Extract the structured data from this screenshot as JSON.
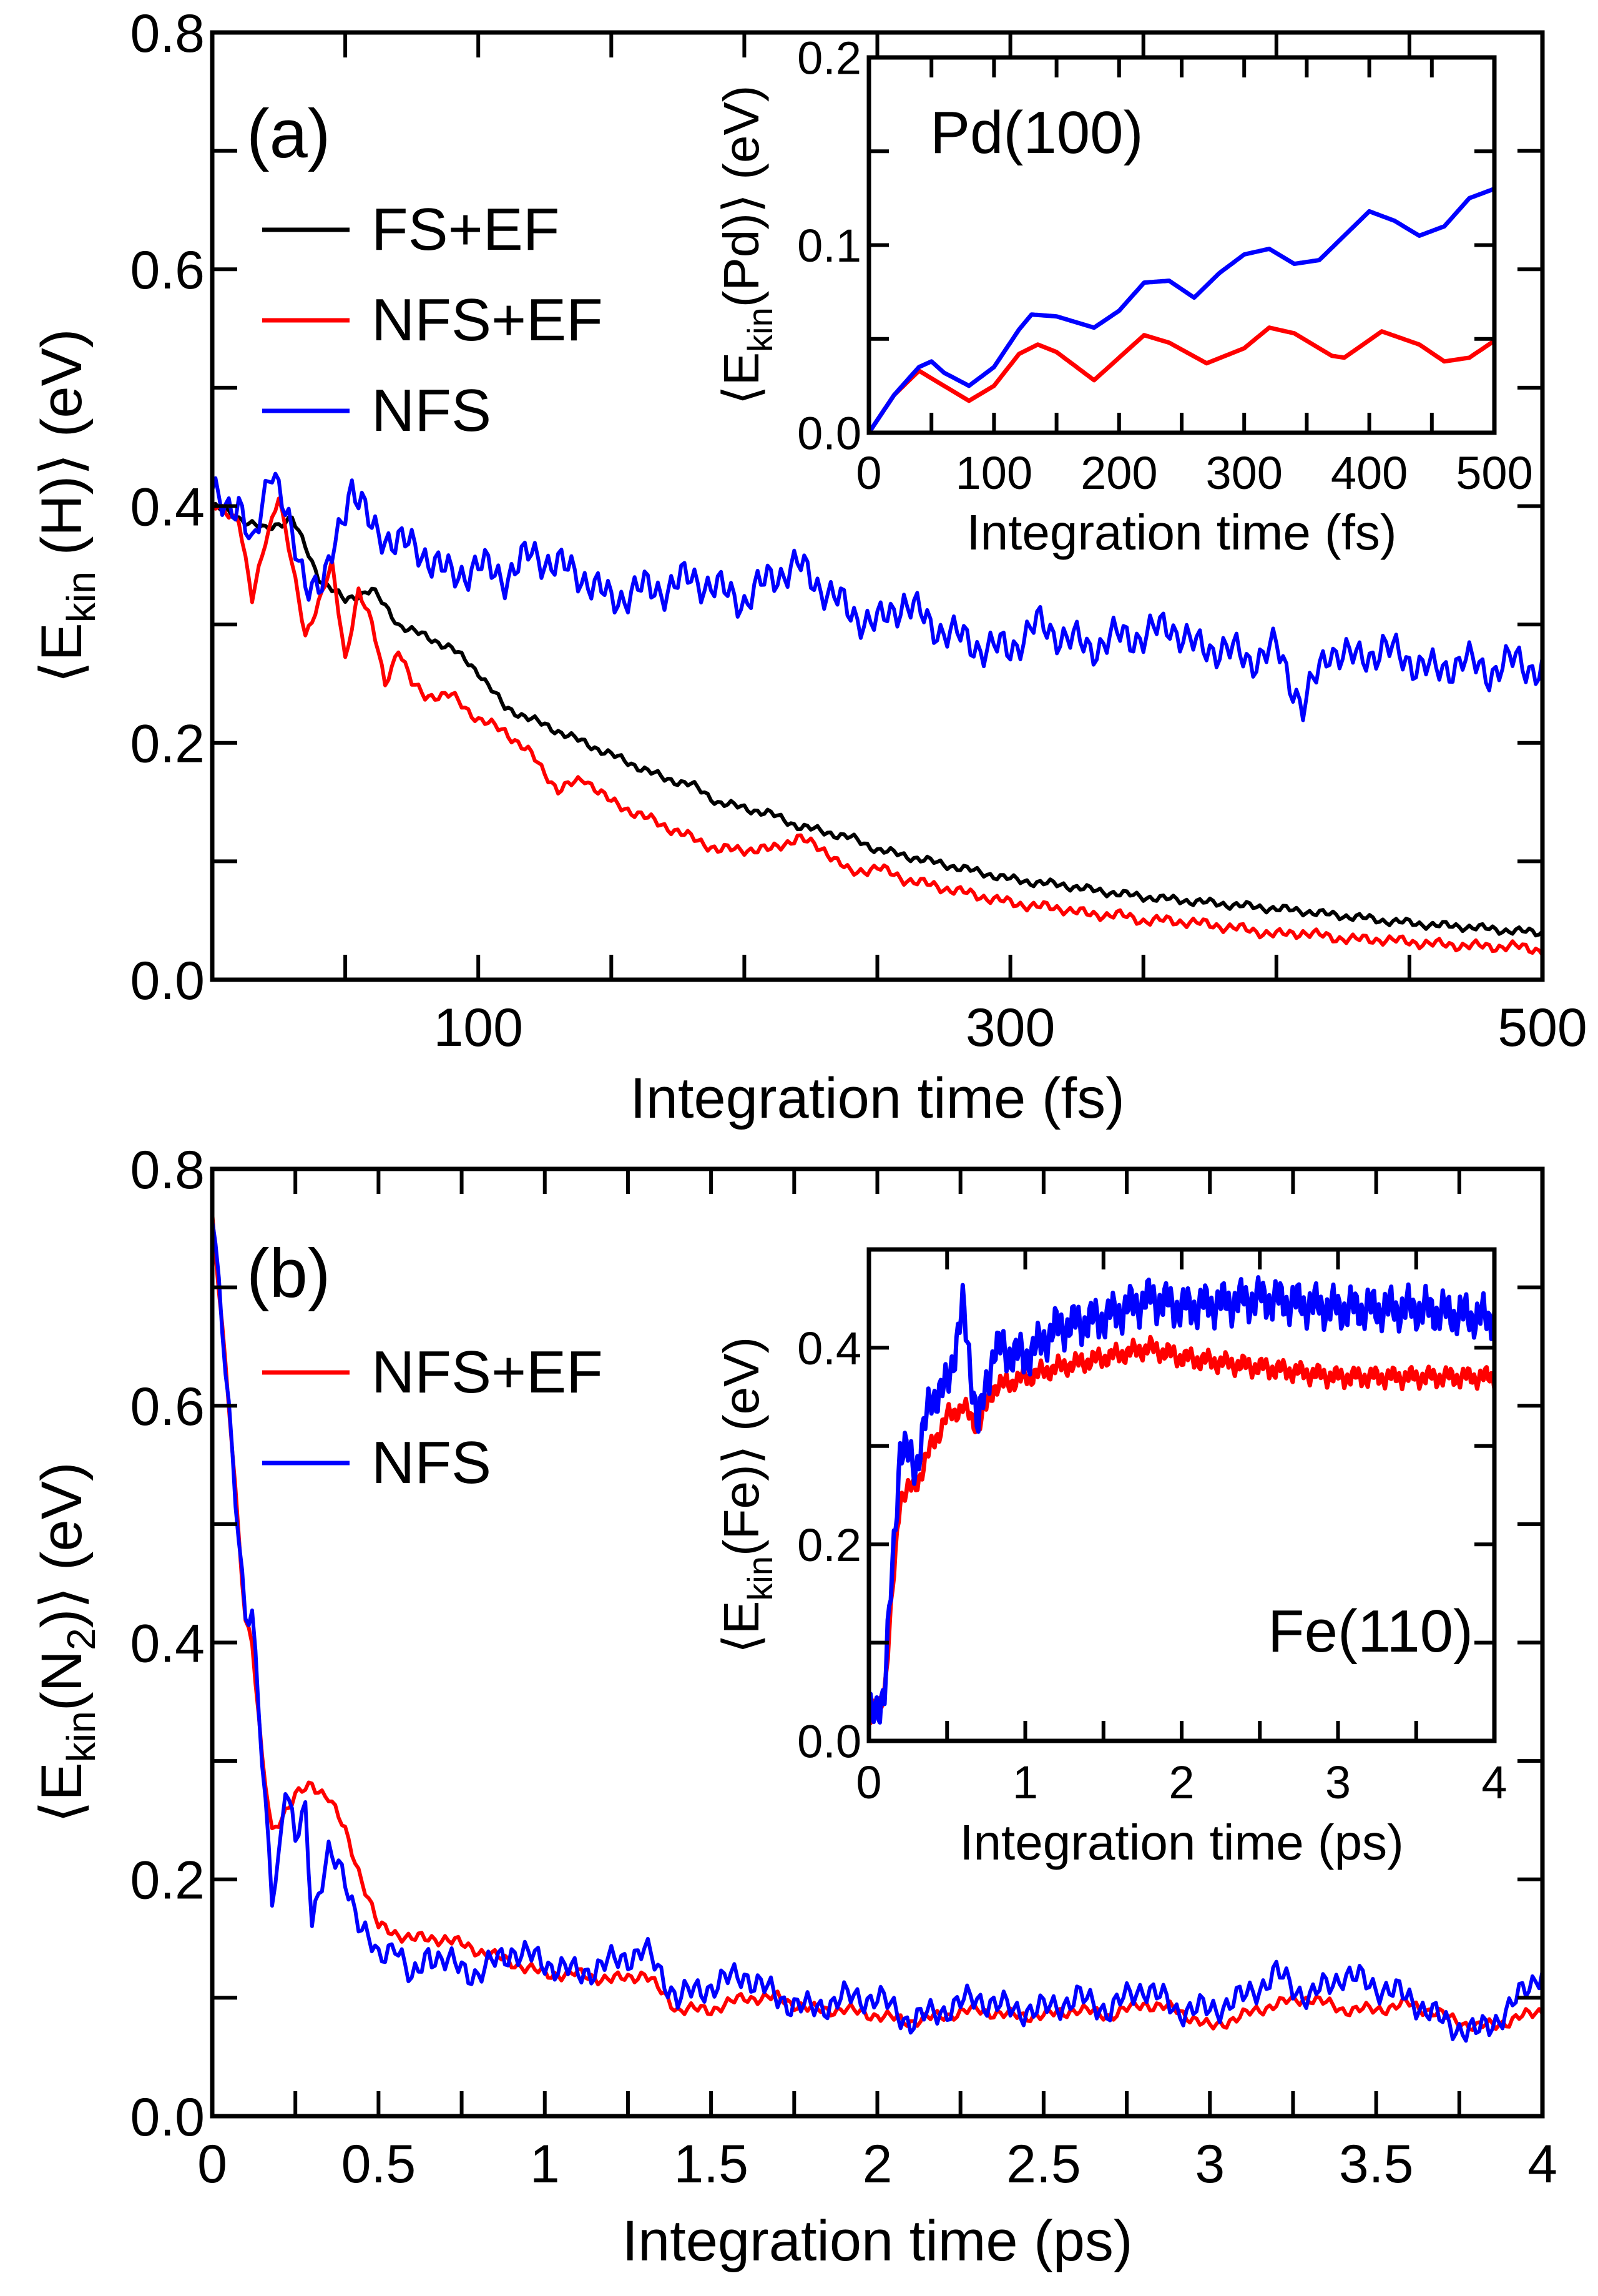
{
  "colors": {
    "FS+EF": "#000000",
    "NFS+EF": "#ff0000",
    "NFS": "#0000ff"
  },
  "chart_data": [
    {
      "id": "a",
      "type": "line",
      "panel_label": "(a)",
      "xlabel": "Integration time (fs)",
      "ylabel": {
        "prefix": "⟨E",
        "sub": "kin",
        "suffix": " (H)⟩ (eV)"
      },
      "xlim": [
        0,
        500
      ],
      "ylim": [
        0,
        0.8
      ],
      "xticklabels": [
        "100",
        "300",
        "500"
      ],
      "xtickvalues": [
        100,
        300,
        500
      ],
      "yticklabels": [
        "0.0",
        "0.2",
        "0.4",
        "0.6",
        "0.8"
      ],
      "ytickvalues": [
        0,
        0.2,
        0.4,
        0.6,
        0.8
      ],
      "legend": [
        "FS+EF",
        "NFS+EF",
        "NFS"
      ],
      "legend_position": "top-left",
      "series": [
        {
          "name": "FS+EF",
          "x": [
            0,
            10,
            20,
            30,
            40,
            50,
            60,
            70,
            80,
            90,
            100,
            110,
            120,
            130,
            140,
            150,
            160,
            170,
            180,
            190,
            200,
            210,
            220,
            230,
            240,
            250,
            260,
            270,
            280,
            290,
            300,
            310,
            320,
            330,
            340,
            350,
            360,
            370,
            380,
            390,
            400,
            410,
            420,
            430,
            440,
            450,
            460,
            470,
            480,
            490,
            500
          ],
          "y": [
            0.4,
            0.39,
            0.38,
            0.39,
            0.34,
            0.32,
            0.33,
            0.3,
            0.29,
            0.28,
            0.26,
            0.23,
            0.22,
            0.21,
            0.2,
            0.19,
            0.18,
            0.17,
            0.165,
            0.15,
            0.145,
            0.14,
            0.13,
            0.125,
            0.12,
            0.11,
            0.105,
            0.1,
            0.095,
            0.09,
            0.085,
            0.082,
            0.08,
            0.076,
            0.073,
            0.07,
            0.068,
            0.066,
            0.064,
            0.062,
            0.06,
            0.058,
            0.055,
            0.053,
            0.05,
            0.048,
            0.046,
            0.045,
            0.043,
            0.041,
            0.04
          ],
          "noise": 0.004
        },
        {
          "name": "NFS+EF",
          "x": [
            0,
            10,
            15,
            20,
            25,
            30,
            35,
            45,
            50,
            55,
            60,
            65,
            70,
            75,
            80,
            90,
            100,
            110,
            120,
            130,
            140,
            150,
            160,
            170,
            180,
            190,
            200,
            210,
            220,
            230,
            240,
            250,
            260,
            270,
            280,
            290,
            300,
            310,
            320,
            330,
            340,
            350,
            360,
            370,
            380,
            390,
            400,
            410,
            420,
            430,
            440,
            450,
            460,
            470,
            480,
            490,
            500
          ],
          "y": [
            0.4,
            0.39,
            0.32,
            0.37,
            0.41,
            0.35,
            0.29,
            0.35,
            0.27,
            0.33,
            0.3,
            0.25,
            0.28,
            0.25,
            0.24,
            0.24,
            0.22,
            0.21,
            0.19,
            0.16,
            0.17,
            0.15,
            0.14,
            0.13,
            0.12,
            0.11,
            0.11,
            0.11,
            0.12,
            0.11,
            0.09,
            0.095,
            0.085,
            0.08,
            0.075,
            0.07,
            0.065,
            0.062,
            0.06,
            0.055,
            0.055,
            0.05,
            0.05,
            0.048,
            0.045,
            0.042,
            0.038,
            0.04,
            0.036,
            0.034,
            0.034,
            0.032,
            0.03,
            0.029,
            0.028,
            0.028,
            0.025
          ],
          "noise": 0.005
        },
        {
          "name": "NFS",
          "x": [
            0,
            10,
            15,
            22,
            30,
            35,
            42,
            52,
            60,
            70,
            80,
            90,
            100,
            110,
            120,
            130,
            140,
            150,
            160,
            170,
            180,
            190,
            200,
            210,
            220,
            230,
            240,
            250,
            260,
            270,
            280,
            290,
            300,
            310,
            320,
            330,
            340,
            350,
            360,
            370,
            380,
            390,
            400,
            410,
            420,
            430,
            440,
            450,
            460,
            470,
            480,
            490,
            500
          ],
          "y": [
            0.41,
            0.4,
            0.36,
            0.44,
            0.37,
            0.34,
            0.33,
            0.42,
            0.38,
            0.37,
            0.36,
            0.34,
            0.35,
            0.34,
            0.36,
            0.35,
            0.34,
            0.32,
            0.33,
            0.33,
            0.34,
            0.33,
            0.32,
            0.34,
            0.35,
            0.33,
            0.31,
            0.3,
            0.32,
            0.3,
            0.29,
            0.28,
            0.28,
            0.3,
            0.29,
            0.28,
            0.29,
            0.29,
            0.3,
            0.28,
            0.28,
            0.27,
            0.28,
            0.23,
            0.28,
            0.27,
            0.28,
            0.27,
            0.26,
            0.27,
            0.26,
            0.27,
            0.26
          ],
          "noise": 0.018
        }
      ]
    },
    {
      "id": "a_inset",
      "type": "line",
      "annotation": "Pd(100)",
      "xlabel": "Integration time (fs)",
      "ylabel": {
        "prefix": "⟨E",
        "sub": "kin",
        "suffix": "(Pd)⟩ (eV)"
      },
      "xlim": [
        0,
        500
      ],
      "ylim": [
        0,
        0.2
      ],
      "xticklabels": [
        "0",
        "100",
        "200",
        "300",
        "400",
        "500"
      ],
      "xtickvalues": [
        0,
        100,
        200,
        300,
        400,
        500
      ],
      "yticklabels": [
        "0.0",
        "0.1",
        "0.2"
      ],
      "ytickvalues": [
        0,
        0.1,
        0.2
      ],
      "series": [
        {
          "name": "NFS+EF",
          "x": [
            0,
            20,
            40,
            60,
            80,
            100,
            120,
            135,
            150,
            180,
            200,
            220,
            240,
            270,
            300,
            320,
            340,
            370,
            380,
            410,
            440,
            460,
            480,
            500
          ],
          "y": [
            0,
            0.02,
            0.033,
            0.025,
            0.017,
            0.025,
            0.042,
            0.047,
            0.043,
            0.028,
            0.04,
            0.052,
            0.048,
            0.037,
            0.045,
            0.056,
            0.053,
            0.041,
            0.04,
            0.054,
            0.047,
            0.038,
            0.04,
            0.049
          ],
          "noise": 0
        },
        {
          "name": "NFS",
          "x": [
            0,
            20,
            40,
            50,
            60,
            80,
            100,
            120,
            130,
            150,
            180,
            200,
            220,
            240,
            260,
            280,
            300,
            320,
            340,
            360,
            380,
            400,
            420,
            440,
            460,
            480,
            500
          ],
          "y": [
            0,
            0.02,
            0.035,
            0.038,
            0.032,
            0.025,
            0.035,
            0.055,
            0.063,
            0.062,
            0.056,
            0.065,
            0.08,
            0.081,
            0.072,
            0.085,
            0.095,
            0.098,
            0.09,
            0.092,
            0.105,
            0.118,
            0.113,
            0.105,
            0.11,
            0.125,
            0.13
          ],
          "noise": 0
        }
      ]
    },
    {
      "id": "b",
      "type": "line",
      "panel_label": "(b)",
      "xlabel": "Integration time (ps)",
      "ylabel": {
        "prefix": "⟨E",
        "sub": "kin",
        "suffix": "(N",
        "sub2": "2",
        "suffix2": ")⟩ (eV)"
      },
      "xlim": [
        0,
        4
      ],
      "ylim": [
        0,
        0.8
      ],
      "xticklabels": [
        "0",
        "0.5",
        "1",
        "1.5",
        "2",
        "2.5",
        "3",
        "3.5",
        "4"
      ],
      "xtickvalues": [
        0,
        0.5,
        1,
        1.5,
        2,
        2.5,
        3,
        3.5,
        4
      ],
      "yticklabels": [
        "0.0",
        "0.2",
        "0.4",
        "0.6",
        "0.8"
      ],
      "ytickvalues": [
        0,
        0.2,
        0.4,
        0.6,
        0.8
      ],
      "legend": [
        "NFS+EF",
        "NFS"
      ],
      "legend_position": "top-left",
      "series": [
        {
          "name": "NFS+EF",
          "x": [
            0,
            0.05,
            0.1,
            0.12,
            0.15,
            0.18,
            0.2,
            0.25,
            0.3,
            0.35,
            0.4,
            0.45,
            0.5,
            0.6,
            0.7,
            0.8,
            0.9,
            1.0,
            1.1,
            1.2,
            1.3,
            1.4,
            1.5,
            1.6,
            1.7,
            1.8,
            1.9,
            2.0,
            2.1,
            2.2,
            2.3,
            2.4,
            2.5,
            2.6,
            2.7,
            2.8,
            2.9,
            3.0,
            3.1,
            3.2,
            3.3,
            3.4,
            3.5,
            3.6,
            3.7,
            3.8,
            3.9,
            4.0
          ],
          "y": [
            0.76,
            0.6,
            0.42,
            0.4,
            0.3,
            0.24,
            0.25,
            0.27,
            0.28,
            0.27,
            0.24,
            0.2,
            0.16,
            0.15,
            0.15,
            0.14,
            0.13,
            0.12,
            0.12,
            0.115,
            0.12,
            0.09,
            0.09,
            0.1,
            0.1,
            0.09,
            0.09,
            0.085,
            0.08,
            0.085,
            0.09,
            0.085,
            0.085,
            0.09,
            0.085,
            0.095,
            0.09,
            0.075,
            0.085,
            0.095,
            0.1,
            0.09,
            0.09,
            0.095,
            0.085,
            0.075,
            0.08,
            0.09
          ],
          "noise": 0.006
        },
        {
          "name": "NFS",
          "x": [
            0,
            0.05,
            0.1,
            0.12,
            0.15,
            0.18,
            0.2,
            0.22,
            0.25,
            0.28,
            0.3,
            0.35,
            0.4,
            0.45,
            0.5,
            0.55,
            0.6,
            0.65,
            0.7,
            0.8,
            0.9,
            1.0,
            1.1,
            1.2,
            1.3,
            1.4,
            1.5,
            1.6,
            1.7,
            1.8,
            1.9,
            2.0,
            2.1,
            2.2,
            2.3,
            2.4,
            2.5,
            2.6,
            2.7,
            2.8,
            2.9,
            3.0,
            3.1,
            3.2,
            3.3,
            3.4,
            3.5,
            3.6,
            3.7,
            3.8,
            3.9,
            4.0
          ],
          "y": [
            0.76,
            0.6,
            0.42,
            0.42,
            0.3,
            0.19,
            0.22,
            0.28,
            0.23,
            0.26,
            0.17,
            0.22,
            0.2,
            0.16,
            0.13,
            0.15,
            0.11,
            0.14,
            0.13,
            0.12,
            0.14,
            0.13,
            0.12,
            0.13,
            0.14,
            0.1,
            0.11,
            0.12,
            0.1,
            0.09,
            0.1,
            0.1,
            0.08,
            0.09,
            0.1,
            0.09,
            0.09,
            0.1,
            0.09,
            0.11,
            0.09,
            0.09,
            0.1,
            0.12,
            0.1,
            0.12,
            0.11,
            0.1,
            0.08,
            0.07,
            0.09,
            0.125
          ],
          "noise": 0.014
        }
      ]
    },
    {
      "id": "b_inset",
      "type": "line",
      "annotation": "Fe(110)",
      "xlabel": "Integration time (ps)",
      "ylabel": {
        "prefix": "⟨E",
        "sub": "kin",
        "suffix": "(Fe)⟩ (eV)"
      },
      "xlim": [
        0,
        4
      ],
      "ylim": [
        0,
        0.5
      ],
      "xticklabels": [
        "0",
        "1",
        "2",
        "3",
        "4"
      ],
      "xtickvalues": [
        0,
        1,
        2,
        3,
        4
      ],
      "yticklabels": [
        "0.0",
        "0.2",
        "0.4"
      ],
      "ytickvalues": [
        0,
        0.2,
        0.4
      ],
      "series": [
        {
          "name": "NFS+EF",
          "x": [
            0,
            0.1,
            0.15,
            0.2,
            0.3,
            0.4,
            0.5,
            0.6,
            0.7,
            0.8,
            1.0,
            1.2,
            1.5,
            1.8,
            2.0,
            2.5,
            3.0,
            3.5,
            4.0
          ],
          "y": [
            0.02,
            0.05,
            0.15,
            0.25,
            0.26,
            0.3,
            0.33,
            0.34,
            0.32,
            0.36,
            0.37,
            0.38,
            0.39,
            0.4,
            0.39,
            0.38,
            0.37,
            0.37,
            0.37
          ],
          "noise": 0.012
        },
        {
          "name": "NFS",
          "x": [
            0,
            0.1,
            0.2,
            0.3,
            0.4,
            0.5,
            0.6,
            0.7,
            0.8,
            1.0,
            1.2,
            1.5,
            1.8,
            2.0,
            2.5,
            3.0,
            3.5,
            4.0
          ],
          "y": [
            0.02,
            0.05,
            0.3,
            0.28,
            0.35,
            0.36,
            0.44,
            0.32,
            0.4,
            0.39,
            0.42,
            0.43,
            0.45,
            0.44,
            0.45,
            0.44,
            0.44,
            0.43
          ],
          "noise": 0.025
        }
      ]
    }
  ]
}
